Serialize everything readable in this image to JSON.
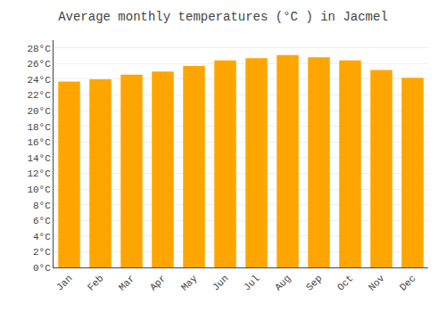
{
  "chart_data": {
    "type": "bar",
    "title": "Average monthly temperatures (°C ) in Jacmel",
    "categories": [
      "Jan",
      "Feb",
      "Mar",
      "Apr",
      "May",
      "Jun",
      "Jul",
      "Aug",
      "Sep",
      "Oct",
      "Nov",
      "Dec"
    ],
    "values": [
      23.7,
      24.0,
      24.6,
      25.0,
      25.7,
      26.4,
      26.7,
      27.1,
      26.8,
      26.4,
      25.2,
      24.2
    ],
    "color": "#FFA500",
    "ylim": [
      0,
      29
    ],
    "yticks": [
      {
        "value": 0,
        "label": "0°C"
      },
      {
        "value": 2,
        "label": "2°C"
      },
      {
        "value": 4,
        "label": "4°C"
      },
      {
        "value": 6,
        "label": "6°C"
      },
      {
        "value": 8,
        "label": "8°C"
      },
      {
        "value": 10,
        "label": "10°C"
      },
      {
        "value": 12,
        "label": "12°C"
      },
      {
        "value": 14,
        "label": "14°C"
      },
      {
        "value": 16,
        "label": "16°C"
      },
      {
        "value": 18,
        "label": "18°C"
      },
      {
        "value": 20,
        "label": "20°C"
      },
      {
        "value": 22,
        "label": "22°C"
      },
      {
        "value": 24,
        "label": "24°C"
      },
      {
        "value": 26,
        "label": "26°C"
      },
      {
        "value": 28,
        "label": "28°C"
      }
    ],
    "grid": true
  }
}
